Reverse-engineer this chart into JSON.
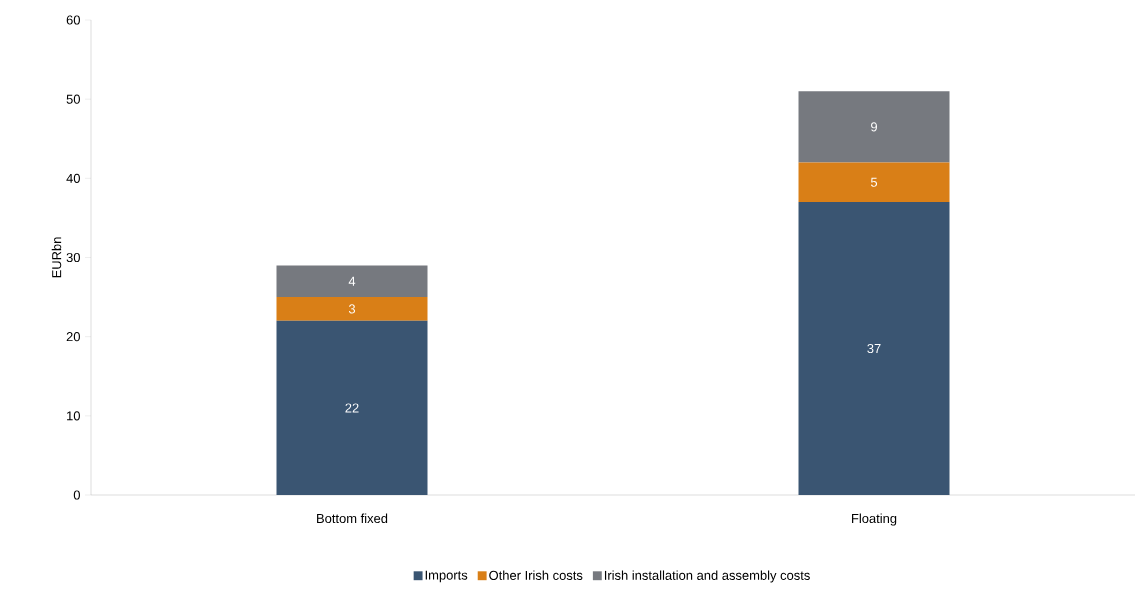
{
  "chart_data": {
    "type": "bar",
    "stacked": true,
    "ylabel": "EURbn",
    "categories": [
      "Bottom fixed",
      "Floating"
    ],
    "series": [
      {
        "name": "Imports",
        "color": "#3a5572",
        "values": [
          22,
          37
        ]
      },
      {
        "name": "Other Irish costs",
        "color": "#d97f17",
        "values": [
          3,
          5
        ]
      },
      {
        "name": "Irish installation and assembly costs",
        "color": "#76797f",
        "values": [
          4,
          9
        ]
      }
    ],
    "ylim": [
      0,
      60
    ],
    "yticks": [
      0,
      10,
      20,
      30,
      40,
      50,
      60
    ],
    "grid": false,
    "legend": "bottom",
    "data_labels": true
  }
}
